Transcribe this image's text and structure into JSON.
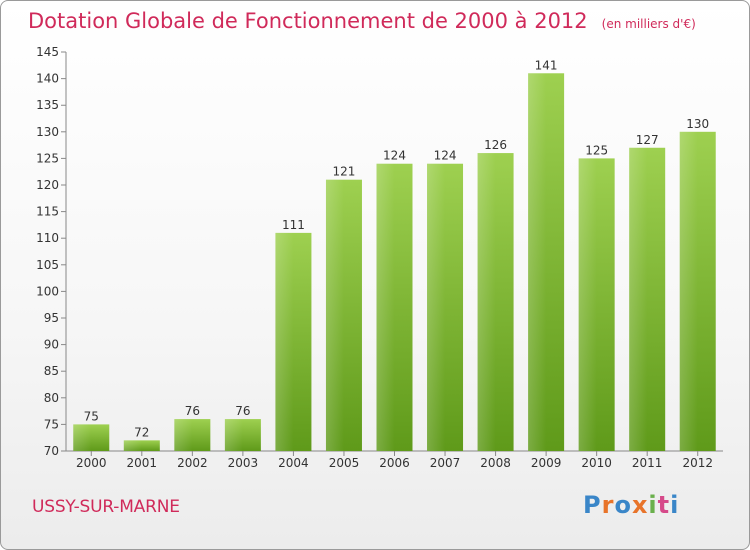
{
  "page": {
    "title": "Dotation Globale de Fonctionnement de 2000 à 2012",
    "unit": "(en milliers d'€)",
    "commune": "USSY-SUR-MARNE",
    "logo_letters": [
      "P",
      "r",
      "o",
      "x",
      "i",
      "t",
      "i"
    ],
    "logo_colors": [
      "#3a86c8",
      "#e8742a",
      "#3a86c8",
      "#e8742a",
      "#6ab04c",
      "#d64a8a",
      "#3a86c8"
    ]
  },
  "chart_data": {
    "type": "bar",
    "title": "Dotation Globale de Fonctionnement de 2000 à 2012",
    "subtitle": "(en milliers d'€)",
    "categories": [
      "2000",
      "2001",
      "2002",
      "2003",
      "2004",
      "2005",
      "2006",
      "2007",
      "2008",
      "2009",
      "2010",
      "2011",
      "2012"
    ],
    "values": [
      75,
      72,
      76,
      76,
      111,
      121,
      124,
      124,
      126,
      141,
      125,
      127,
      130
    ],
    "data_labels": [
      "75",
      "72",
      "76",
      "76",
      "111",
      "121",
      "124",
      "124",
      "126",
      "141",
      "125",
      "127",
      "130"
    ],
    "ylim": [
      70,
      145
    ],
    "yticks": [
      70,
      75,
      80,
      85,
      90,
      95,
      100,
      105,
      110,
      115,
      120,
      125,
      130,
      135,
      140,
      145
    ],
    "xlabel": "",
    "ylabel": "",
    "grid": false,
    "bar_color": "#7ab630"
  }
}
